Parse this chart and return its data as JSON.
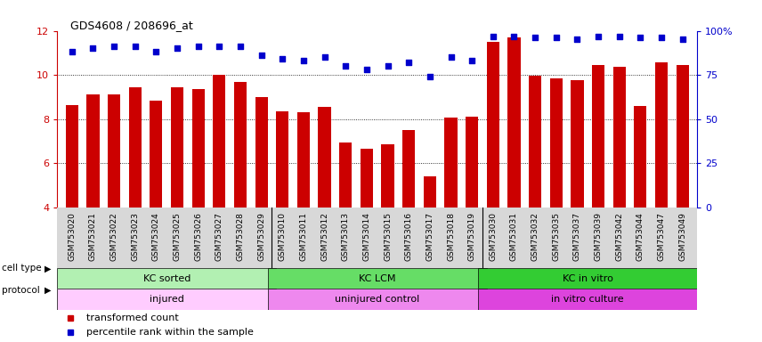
{
  "title": "GDS4608 / 208696_at",
  "samples": [
    "GSM753020",
    "GSM753021",
    "GSM753022",
    "GSM753023",
    "GSM753024",
    "GSM753025",
    "GSM753026",
    "GSM753027",
    "GSM753028",
    "GSM753029",
    "GSM753010",
    "GSM753011",
    "GSM753012",
    "GSM753013",
    "GSM753014",
    "GSM753015",
    "GSM753016",
    "GSM753017",
    "GSM753018",
    "GSM753019",
    "GSM753030",
    "GSM753031",
    "GSM753032",
    "GSM753035",
    "GSM753037",
    "GSM753039",
    "GSM753042",
    "GSM753044",
    "GSM753047",
    "GSM753049"
  ],
  "bar_values": [
    8.65,
    9.1,
    9.1,
    9.45,
    8.85,
    9.45,
    9.35,
    10.0,
    9.7,
    9.0,
    8.35,
    8.3,
    8.55,
    6.95,
    6.65,
    6.85,
    7.5,
    5.4,
    8.05,
    8.1,
    11.5,
    11.7,
    9.95,
    9.85,
    9.75,
    10.45,
    10.35,
    8.6,
    10.55,
    10.45
  ],
  "percentile_values": [
    88,
    90,
    91,
    91,
    88,
    90,
    91,
    91,
    91,
    86,
    84,
    83,
    85,
    80,
    78,
    80,
    82,
    74,
    85,
    83,
    97,
    97,
    96,
    96,
    95,
    97,
    97,
    96,
    96,
    95
  ],
  "bar_color": "#cc0000",
  "dot_color": "#0000cc",
  "ylim_left": [
    4,
    12
  ],
  "ylim_right": [
    0,
    100
  ],
  "yticks_left": [
    4,
    6,
    8,
    10,
    12
  ],
  "yticks_right": [
    0,
    25,
    50,
    75,
    100
  ],
  "ytick_labels_right": [
    "0",
    "25",
    "50",
    "75",
    "100%"
  ],
  "cell_type_groups": [
    {
      "label": "KC sorted",
      "start": 0,
      "end": 10,
      "color": "#b2f0b2"
    },
    {
      "label": "KC LCM",
      "start": 10,
      "end": 20,
      "color": "#66dd66"
    },
    {
      "label": "KC in vitro",
      "start": 20,
      "end": 30,
      "color": "#33cc33"
    }
  ],
  "protocol_groups": [
    {
      "label": "injured",
      "start": 0,
      "end": 10,
      "color": "#ffccff"
    },
    {
      "label": "uninjured control",
      "start": 10,
      "end": 20,
      "color": "#ee88ee"
    },
    {
      "label": "in vitro culture",
      "start": 20,
      "end": 30,
      "color": "#dd44dd"
    }
  ],
  "legend_bar_label": "transformed count",
  "legend_dot_label": "percentile rank within the sample",
  "grid_color": "#000000",
  "plot_bg": "white",
  "xtick_bg": "#d8d8d8"
}
